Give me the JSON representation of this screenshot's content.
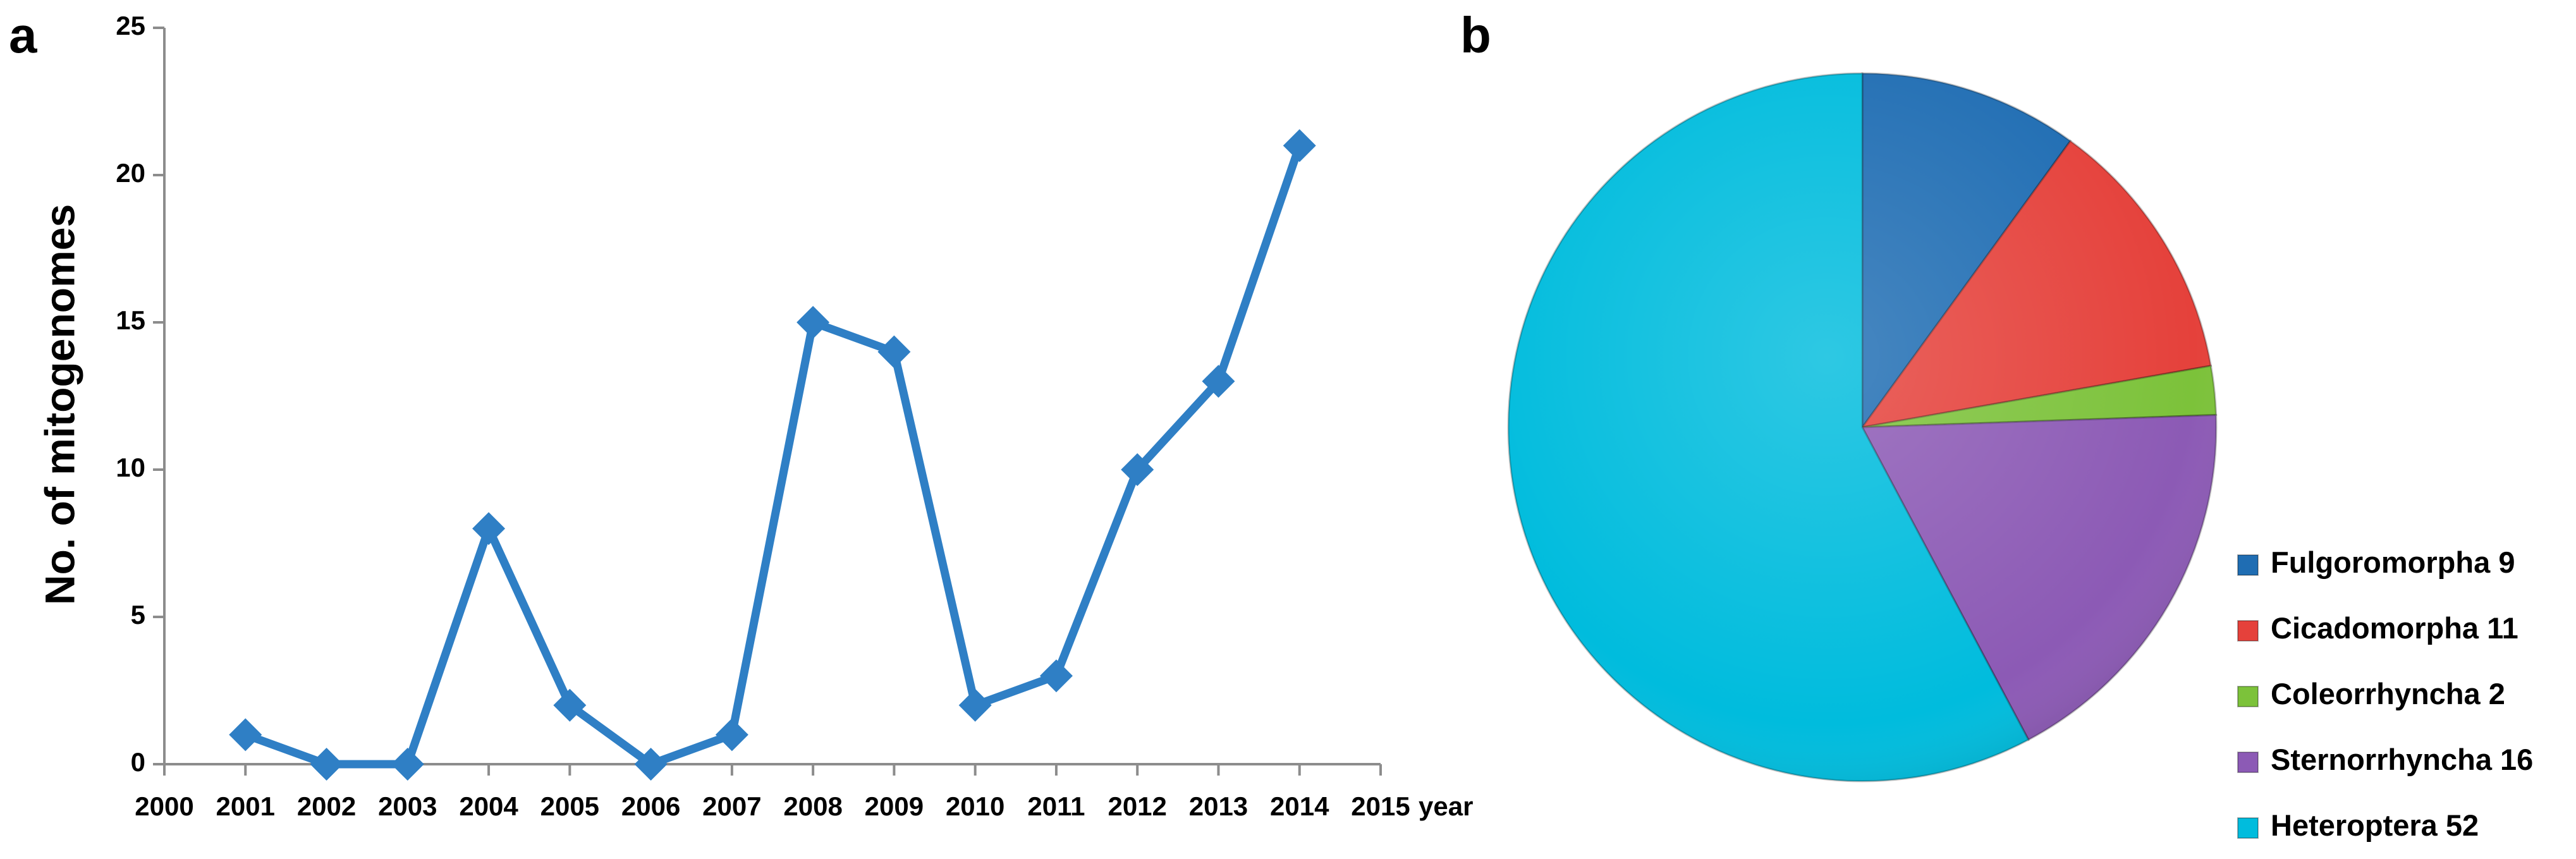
{
  "chart_data": [
    {
      "type": "line",
      "panel_label": "a",
      "x_label": "year",
      "y_label": "No. of mitogenomes",
      "x": [
        2001,
        2002,
        2003,
        2004,
        2005,
        2006,
        2007,
        2008,
        2009,
        2010,
        2011,
        2012,
        2013,
        2014
      ],
      "values": [
        1,
        0,
        0,
        8,
        2,
        0,
        1,
        15,
        14,
        2,
        3,
        10,
        13,
        21
      ],
      "color": "#2f7fc5",
      "xlim": [
        2000,
        2015
      ],
      "xticks": [
        2000,
        2001,
        2002,
        2003,
        2004,
        2005,
        2006,
        2007,
        2008,
        2009,
        2010,
        2011,
        2012,
        2013,
        2014,
        2015
      ],
      "ylim": [
        0,
        25
      ],
      "yticks": [
        0,
        5,
        10,
        15,
        20,
        25
      ],
      "grid": false
    },
    {
      "type": "pie",
      "panel_label": "b",
      "categories": [
        "Fulgoromorpha",
        "Cicadomorpha",
        "Coleorrhyncha",
        "Sternorrhyncha",
        "Heteroptera"
      ],
      "values": [
        9,
        11,
        2,
        16,
        52
      ],
      "colors": [
        "#1f6db3",
        "#e5413b",
        "#7cc23a",
        "#8c5ab5",
        "#00bcdd"
      ],
      "legend": "bottom-right"
    }
  ]
}
